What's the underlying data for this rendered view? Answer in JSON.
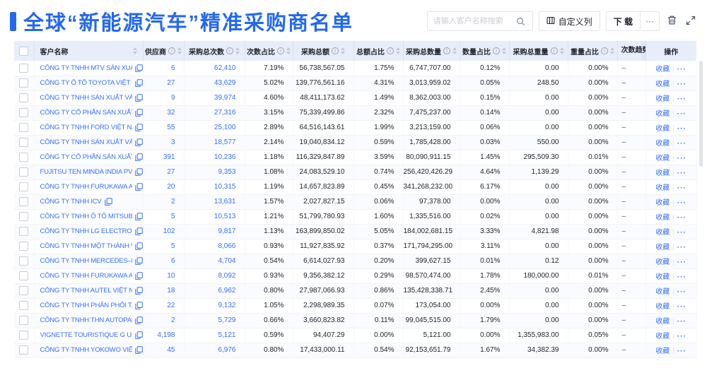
{
  "page": {
    "title": "全球“新能源汽车”精准采购商名单"
  },
  "toolbar": {
    "search_placeholder": "请输入客户名称搜索",
    "customize_columns_label": "自定义列",
    "download_label": "下 载",
    "more_label": "···"
  },
  "colors": {
    "accent_blue": "#2468F2",
    "link_blue": "#3370FF",
    "header_bg": "#E8EEF9"
  },
  "table": {
    "columns": [
      {
        "label": "客户名称",
        "info": false,
        "sort": true
      },
      {
        "label": "供应商",
        "info": true,
        "sort": true
      },
      {
        "label": "采购总次数",
        "info": true,
        "sort": true
      },
      {
        "label": "次数占比",
        "info": true,
        "sort": true
      },
      {
        "label": "采购总额",
        "info": true,
        "sort": true
      },
      {
        "label": "总额占比",
        "info": true,
        "sort": true
      },
      {
        "label": "采购总数量",
        "info": true,
        "sort": true
      },
      {
        "label": "数量占比",
        "info": true,
        "sort": true
      },
      {
        "label": "采购总重量",
        "info": true,
        "sort": true
      },
      {
        "label": "重量占比",
        "info": true,
        "sort": true
      },
      {
        "label": "次数趋势",
        "info": false,
        "sort": false,
        "clipped": true
      },
      {
        "label": "操作",
        "info": false,
        "sort": false
      }
    ],
    "row_fields": [
      "customer_name",
      "suppliers",
      "purchase_times",
      "times_pct",
      "purchase_total_amount",
      "amount_pct",
      "purchase_total_qty",
      "qty_pct",
      "purchase_total_weight",
      "weight_pct",
      "times_trend"
    ],
    "actions": {
      "favorite": "收藏",
      "more": "···"
    },
    "rows": [
      [
        "CÔNG TY TNHH MTV SẢN XUẤ...",
        "6",
        "62,410",
        "7.19%",
        "56,738,567.05",
        "1.75%",
        "6,747,707.00",
        "0.12%",
        "0.00",
        "0.00%",
        "–"
      ],
      [
        "CÔNG TY Ô TÔ TOYOTA VIỆT ...",
        "27",
        "43,629",
        "5.02%",
        "139,776,561.16",
        "4.31%",
        "3,013,959.02",
        "0.05%",
        "248.50",
        "0.00%",
        "–"
      ],
      [
        "CÔNG TY TNHH SẢN XUẤT VÀ ...",
        "9",
        "39,974",
        "4.60%",
        "48,411,173.62",
        "1.49%",
        "8,362,003.00",
        "0.15%",
        "0.00",
        "0.00%",
        "–"
      ],
      [
        "CÔNG TY CỔ PHẦN SẢN XUẤT...",
        "32",
        "27,316",
        "3.15%",
        "75,339,499.86",
        "2.32%",
        "7,475,237.00",
        "0.14%",
        "0.00",
        "0.00%",
        "–"
      ],
      [
        "CÔNG TY TNHH FORD VIỆT NAM",
        "55",
        "25,100",
        "2.89%",
        "64,516,143.61",
        "1.99%",
        "3,213,159.00",
        "0.06%",
        "0.00",
        "0.00%",
        "–"
      ],
      [
        "CÔNG TY TNHH SẢN XUẤT VÀ ...",
        "3",
        "18,577",
        "2.14%",
        "19,040,834.12",
        "0.59%",
        "1,785,428.00",
        "0.03%",
        "550.00",
        "0.00%",
        "–"
      ],
      [
        "CÔNG TY CỔ PHẦN SẢN XUẤT...",
        "391",
        "10,236",
        "1.18%",
        "116,329,847.89",
        "3.59%",
        "80,090,911.15",
        "1.45%",
        "295,509.30",
        "0.01%",
        "–"
      ],
      [
        "FUJITSU TEN MINDA INDIA PVT...",
        "27",
        "9,353",
        "1.08%",
        "24,083,529.10",
        "0.74%",
        "256,420,426.29",
        "4.64%",
        "1,139.29",
        "0.00%",
        "–"
      ],
      [
        "CÔNG TY TNHH FURUKAWA A...",
        "20",
        "10,315",
        "1.19%",
        "14,657,823.89",
        "0.45%",
        "341,268,232.00",
        "6.17%",
        "0.00",
        "0.00%",
        "–"
      ],
      [
        "CÔNG TY TNHH ICV",
        "2",
        "13,631",
        "1.57%",
        "2,027,827.15",
        "0.06%",
        "97,378.00",
        "0.00%",
        "0.00",
        "0.00%",
        "–"
      ],
      [
        "CÔNG TY TNHH Ô TÔ MITSUBI...",
        "5",
        "10,513",
        "1.21%",
        "51,799,780.93",
        "1.60%",
        "1,335,516.00",
        "0.02%",
        "0.00",
        "0.00%",
        "–"
      ],
      [
        "CÔNG TY TNHH LG ELECTRON...",
        "102",
        "9,817",
        "1.13%",
        "163,899,850.02",
        "5.05%",
        "184,002,681.15",
        "3.33%",
        "4,821.98",
        "0.00%",
        "–"
      ],
      [
        "CÔNG TY TNHH MỘT THÀNH V...",
        "5",
        "8,066",
        "0.93%",
        "11,927,835.92",
        "0.37%",
        "171,794,295.00",
        "3.11%",
        "0.00",
        "0.00%",
        "–"
      ],
      [
        "CÔNG TY TNHH MERCEDES–B...",
        "6",
        "4,704",
        "0.54%",
        "6,614,027.93",
        "0.20%",
        "399,627.15",
        "0.01%",
        "0.12",
        "0.00%",
        "–"
      ],
      [
        "CÔNG TY TNHH FURUKAWA A...",
        "10",
        "8,092",
        "0.93%",
        "9,356,382.12",
        "0.29%",
        "98,570,474.00",
        "1.78%",
        "180,000.00",
        "0.01%",
        "–"
      ],
      [
        "CÔNG TY TNHH AUTEL VIỆT N...",
        "18",
        "6,962",
        "0.80%",
        "27,987,066.93",
        "0.86%",
        "135,428,338.71",
        "2.45%",
        "0.00",
        "0.00%",
        "–"
      ],
      [
        "CÔNG TY TNHH PHÂN PHỐI T...",
        "22",
        "9,132",
        "1.05%",
        "2,298,989.35",
        "0.07%",
        "173,054.00",
        "0.00%",
        "0.00",
        "0.00%",
        "–"
      ],
      [
        "CÔNG TY TNHH THN AUTOPAR...",
        "2",
        "5,729",
        "0.66%",
        "3,660,823.82",
        "0.11%",
        "99,045,515.00",
        "1.79%",
        "0.00",
        "0.00%",
        "–"
      ],
      [
        "VIGNETTE TOURISTIQUE G UNI...",
        "4,198",
        "5,121",
        "0.59%",
        "94,407.29",
        "0.00%",
        "5,121.00",
        "0.00%",
        "1,355,983.00",
        "0.05%",
        "–"
      ],
      [
        "CÔNG TY TNHH YOKOWO VIỆT...",
        "45",
        "6,976",
        "0.80%",
        "17,433,000.11",
        "0.54%",
        "92,153,651.79",
        "1.67%",
        "34,382.39",
        "0.00%",
        "–"
      ]
    ]
  }
}
